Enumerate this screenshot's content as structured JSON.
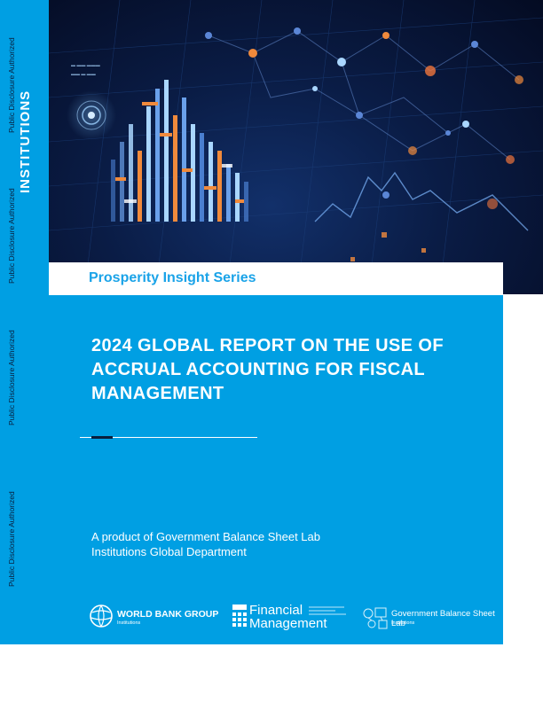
{
  "spine": {
    "disclosure_1": "Public Disclosure Authorized",
    "disclosure_2": "Public Disclosure Authorized",
    "disclosure_3": "Public Disclosure Authorized",
    "disclosure_4": "Public Disclosure Authorized",
    "vertical_title": "INSTITUTIONS"
  },
  "series": {
    "title": "Prosperity Insight Series"
  },
  "report": {
    "title": "2024 GLOBAL REPORT ON THE USE OF ACCRUAL ACCOUNTING FOR FISCAL MANAGEMENT",
    "product_line_1": "A product of Government Balance Sheet Lab",
    "product_line_2": "Institutions Global Department"
  },
  "logos": {
    "world_bank": {
      "name": "WORLD BANK GROUP",
      "sub": "Institutions",
      "icon": "globe-icon"
    },
    "financial_management": {
      "line1": "Financial",
      "line2": "Management",
      "icon": "calculator-icon"
    },
    "gbsl": {
      "name": "Government Balance Sheet Lab",
      "sub": "Institutions",
      "icon": "balance-sheet-icon"
    }
  },
  "colors": {
    "brand_blue": "#009fe3",
    "series_text": "#1aa3e8",
    "navy": "#0a1e3c",
    "hero_bg": "#0a1c45",
    "chart_orange": "#f08a3c",
    "chart_light": "#a9d6ff"
  }
}
